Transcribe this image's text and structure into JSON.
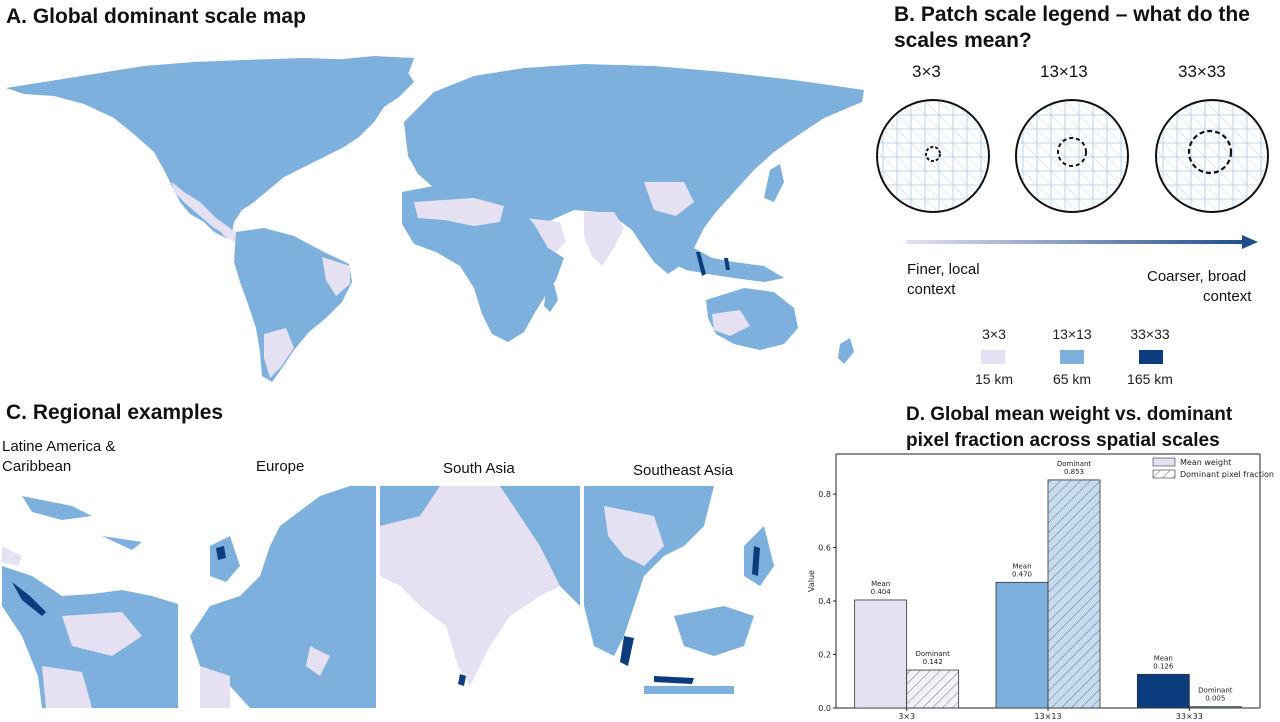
{
  "colors": {
    "fine": "#e6e1f2",
    "medium": "#7eb0de",
    "coarse": "#0b3d7e",
    "road": "#a9cbe8"
  },
  "panel_a": {
    "title": "A. Global dominant scale map"
  },
  "panel_b": {
    "title_line1": "B. Patch scale legend – what do the",
    "title_line2": "scales mean?",
    "scales": [
      "3×3",
      "13×13",
      "33×33"
    ],
    "arrow_left_line1": "Finer, local",
    "arrow_left_line2": "context",
    "arrow_right_line1": "Coarser, broad",
    "arrow_right_line2": "context",
    "legend": [
      {
        "label": "3×3",
        "km": "15 km",
        "color": "#e6e1f2"
      },
      {
        "label": "13×13",
        "km": "65 km",
        "color": "#7eb0de"
      },
      {
        "label": "33×33",
        "km": "165 km",
        "color": "#0b3d7e"
      }
    ]
  },
  "panel_c": {
    "title": "C. Regional examples",
    "regions": [
      "Latine America &",
      "Caribbean",
      "Europe",
      "South Asia",
      "Southeast Asia"
    ]
  },
  "panel_d": {
    "title_line1": "D. Global mean weight vs. dominant",
    "title_line2": "pixel fraction across spatial scales"
  },
  "chart_data": {
    "type": "bar",
    "categories": [
      "3×3",
      "13×13",
      "33×33"
    ],
    "series": [
      {
        "name": "Mean weight",
        "values": [
          0.404,
          0.47,
          0.126
        ],
        "labels": [
          "Mean\n0.404",
          "Mean\n0.470",
          "Mean\n0.126"
        ]
      },
      {
        "name": "Dominant pixel fraction",
        "values": [
          0.142,
          0.853,
          0.005
        ],
        "labels": [
          "Dominant\n0.142",
          "Dominant\n0.853",
          "Dominant\n0.005"
        ]
      }
    ],
    "ylabel": "Value",
    "ylim": [
      0,
      0.95
    ],
    "yticks": [
      "0.0",
      "0.2",
      "0.4",
      "0.6",
      "0.8"
    ],
    "bar_colors": [
      "#e6e1f2",
      "#7eb0de",
      "#0b3d7e"
    ],
    "legend_position": "top-right"
  }
}
